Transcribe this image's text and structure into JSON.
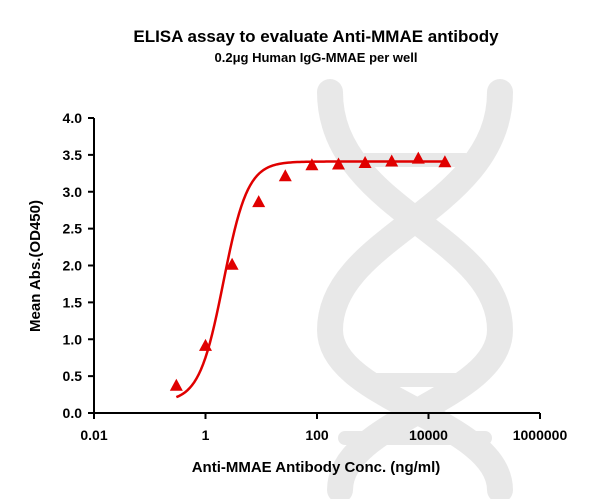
{
  "chart_data": {
    "type": "scatter",
    "title": "ELISA assay to evaluate Anti-MMAE antibody",
    "subtitle": "0.2μg Human IgG-MMAE per well",
    "xlabel": "Anti-MMAE Antibody Conc. (ng/ml)",
    "ylabel": "Mean Abs.(OD450)",
    "x_scale": "log",
    "xlim": [
      0.01,
      1000000
    ],
    "ylim": [
      0,
      4
    ],
    "x_ticks": [
      {
        "value": 0.01,
        "label": "0.01"
      },
      {
        "value": 1,
        "label": "1"
      },
      {
        "value": 100,
        "label": "100"
      },
      {
        "value": 10000,
        "label": "10000"
      },
      {
        "value": 1000000,
        "label": "1000000"
      }
    ],
    "y_ticks": [
      {
        "value": 0,
        "label": "0.0"
      },
      {
        "value": 0.5,
        "label": "0.5"
      },
      {
        "value": 1,
        "label": "1.0"
      },
      {
        "value": 1.5,
        "label": "1.5"
      },
      {
        "value": 2,
        "label": "2.0"
      },
      {
        "value": 2.5,
        "label": "2.5"
      },
      {
        "value": 3,
        "label": "3.0"
      },
      {
        "value": 3.5,
        "label": "3.5"
      },
      {
        "value": 4,
        "label": "4.0"
      }
    ],
    "grid": false,
    "series": [
      {
        "color": "#e00000",
        "marker": "triangle",
        "fit": "4PL sigmoid",
        "x": [
          0.3,
          1,
          3,
          9,
          27,
          81,
          243,
          729,
          2187,
          6561,
          19683
        ],
        "y": [
          0.37,
          0.91,
          2.01,
          2.86,
          3.21,
          3.36,
          3.37,
          3.39,
          3.41,
          3.45,
          3.4
        ]
      }
    ]
  }
}
